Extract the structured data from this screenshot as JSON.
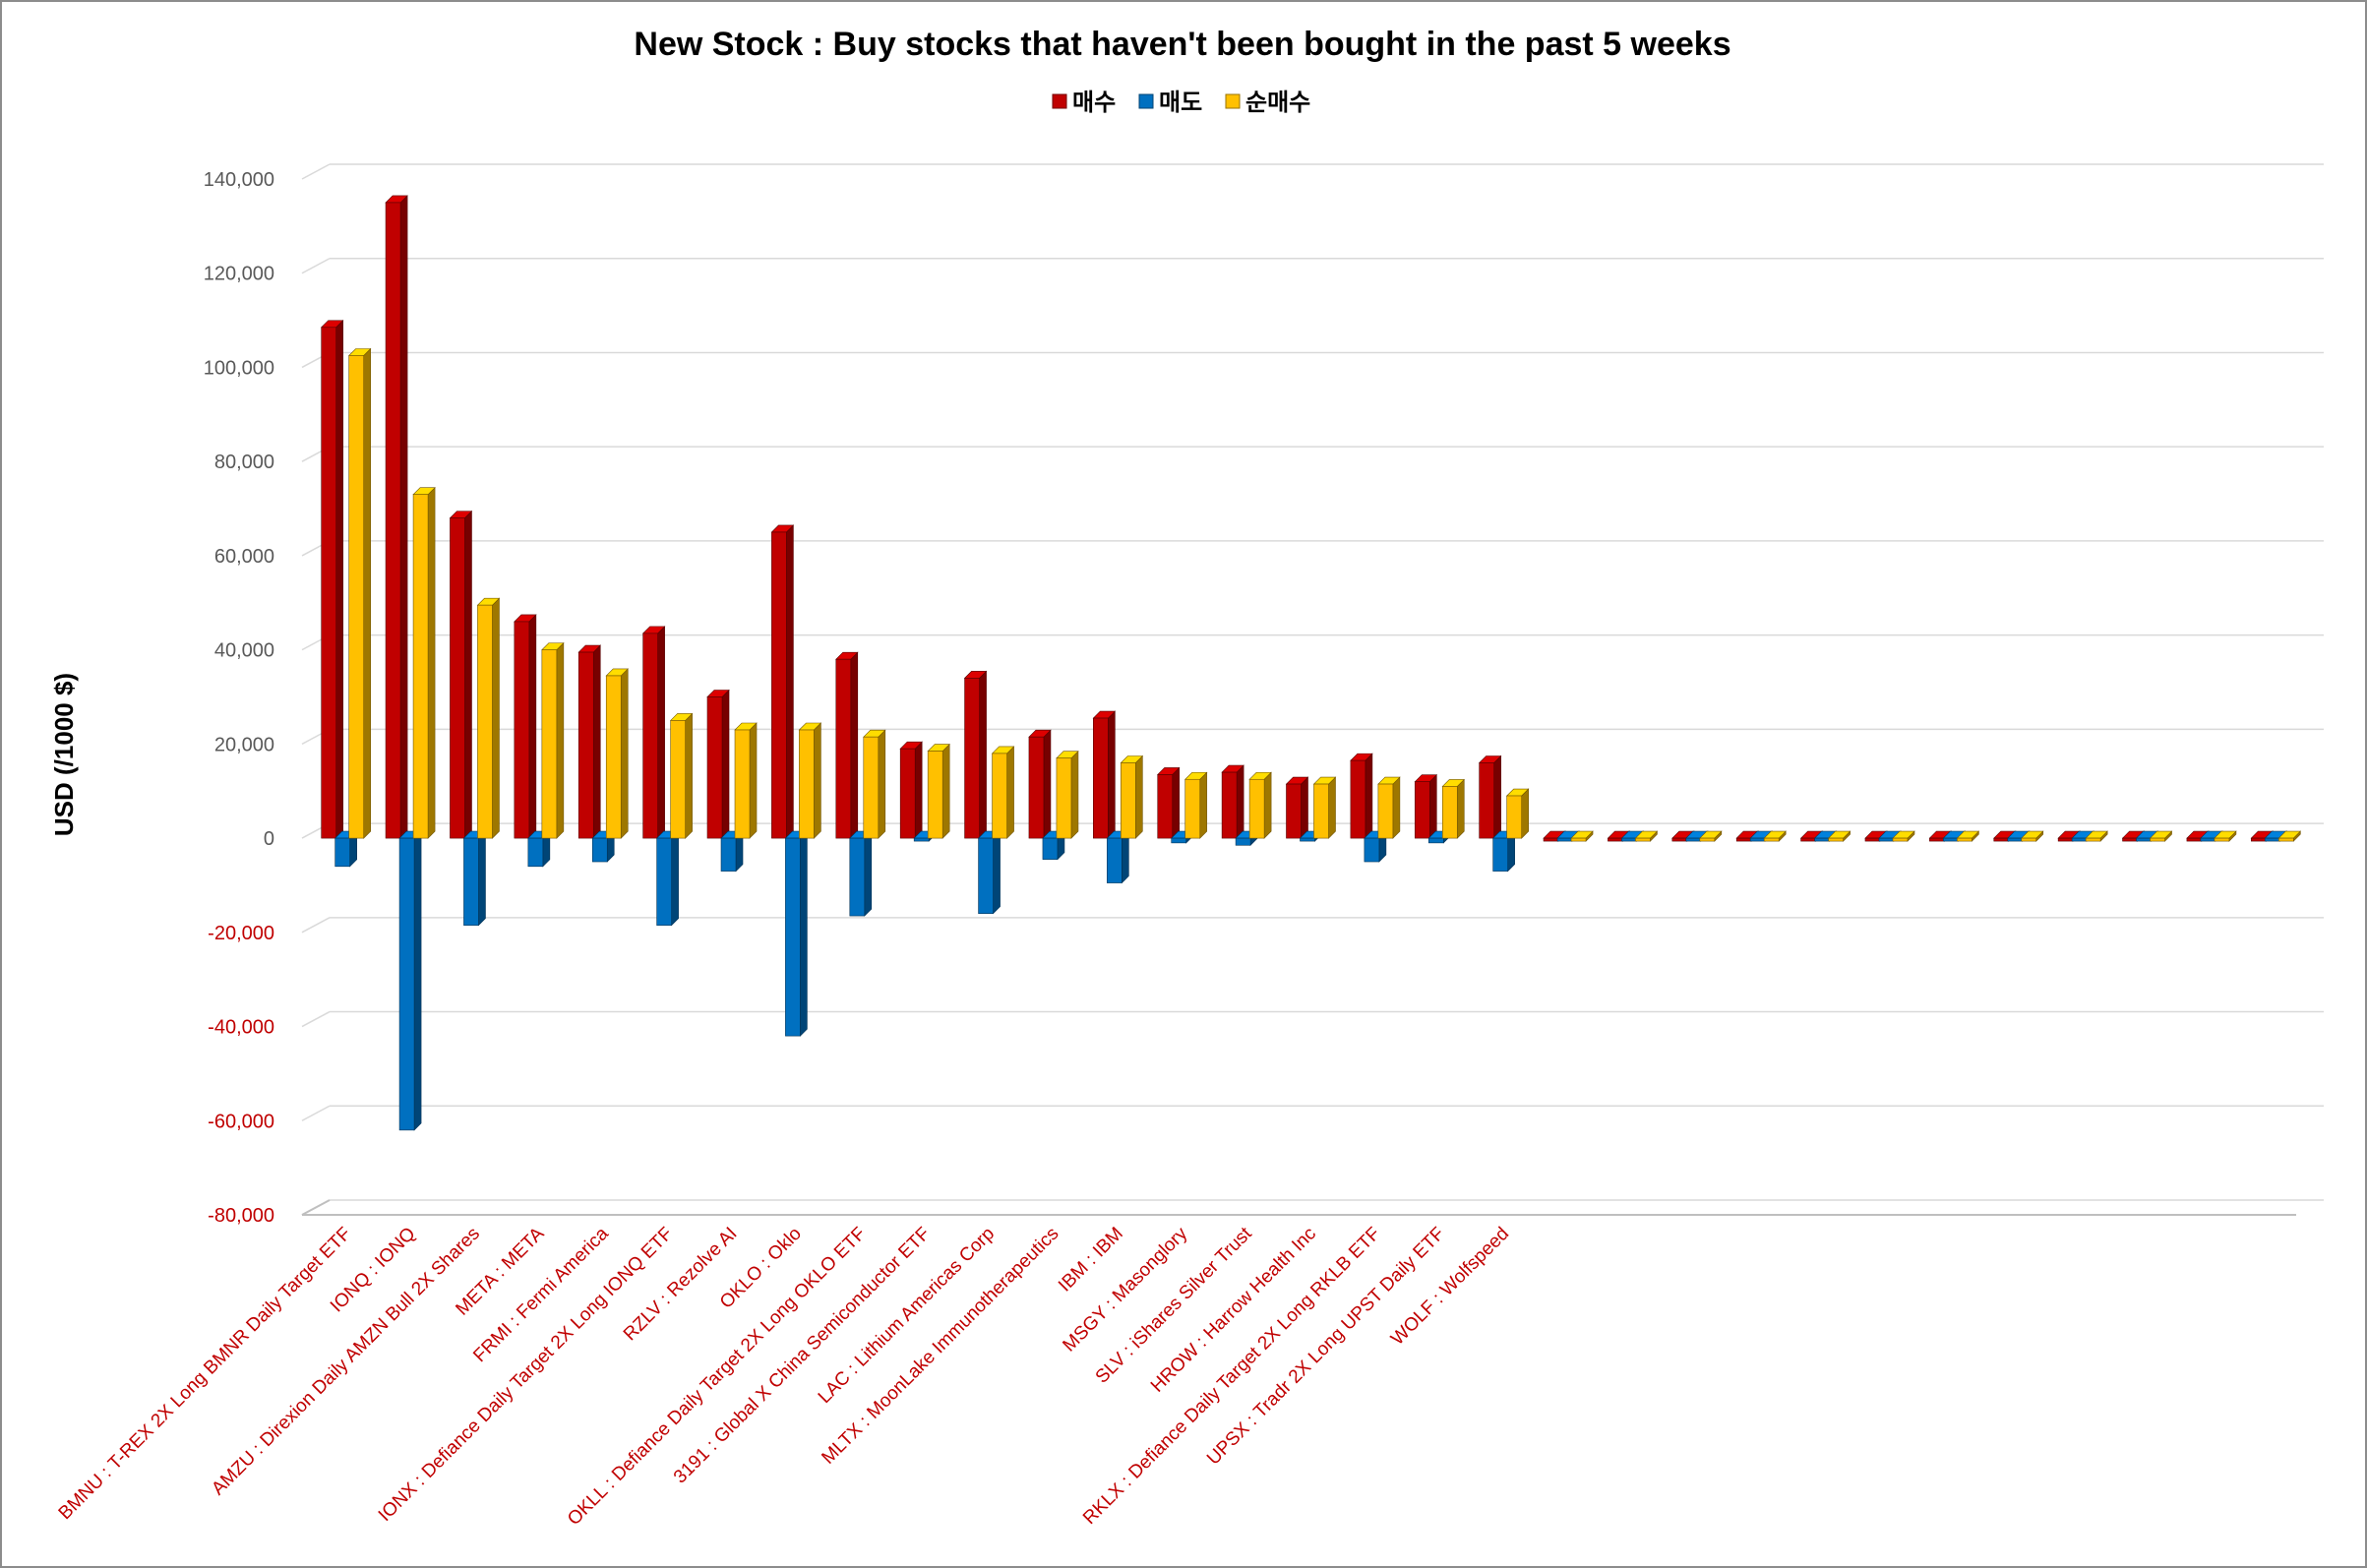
{
  "chart_data": {
    "type": "bar",
    "title": "New Stock : Buy stocks that haven't been bought in the past 5 weeks",
    "ylabel": "USD (/1000 $)",
    "xlabel": "",
    "ylim": [
      -80000,
      140000
    ],
    "yticks": [
      -80000,
      -60000,
      -40000,
      -20000,
      0,
      20000,
      40000,
      60000,
      80000,
      100000,
      120000,
      140000
    ],
    "ytick_labels": [
      "-80,000",
      "-60,000",
      "-40,000",
      "-20,000",
      "0",
      "20,000",
      "40,000",
      "60,000",
      "80,000",
      "100,000",
      "120,000",
      "140,000"
    ],
    "grid": true,
    "legend_position": "top-center",
    "categories": [
      "BMNU : T-REX 2X Long BMNR Daily Target ETF",
      "IONQ : IONQ",
      "AMZU : Direxion Daily AMZN Bull 2X Shares",
      "META : META",
      "FRMI : Fermi America",
      "IONX : Defiance Daily Target 2X Long IONQ ETF",
      "RZLV : Rezolve AI",
      "OKLO : Oklo",
      "OKLL : Defiance Daily Target 2X Long OKLO ETF",
      "3191 : Global X China Semiconductor ETF",
      "LAC : Lithium Americas Corp",
      "MLTX : MoonLake Immunotherapeutics",
      "IBM : IBM",
      "MSGY : Masonglory",
      "SLV : iShares Silver Trust",
      "HROW : Harrow Health Inc",
      "RKLX : Defiance Daily Target 2X Long RKLB ETF",
      "UPSX : Tradr 2X Long UPST Daily ETF",
      "WOLF : Wolfspeed",
      "",
      "",
      "",
      "",
      "",
      "",
      "",
      "",
      "",
      "",
      "",
      ""
    ],
    "series": [
      {
        "name": "매수",
        "color": "#c00000",
        "values": [
          108500,
          135000,
          68000,
          46000,
          39500,
          43500,
          30000,
          65000,
          38000,
          19000,
          34000,
          21500,
          25500,
          13500,
          14000,
          11500,
          16500,
          12000,
          16000,
          0,
          0,
          0,
          0,
          0,
          0,
          0,
          0,
          0,
          0,
          0,
          0
        ]
      },
      {
        "name": "매도",
        "color": "#0070c0",
        "values": [
          -6000,
          -62000,
          -18500,
          -6000,
          -5000,
          -18500,
          -7000,
          -42000,
          -16500,
          -500,
          -16000,
          -4500,
          -9500,
          -1000,
          -1500,
          0,
          -5000,
          -1000,
          -7000,
          0,
          0,
          0,
          0,
          0,
          0,
          0,
          0,
          0,
          0,
          0,
          0
        ]
      },
      {
        "name": "순매수",
        "color": "#ffc000",
        "values": [
          102500,
          73000,
          49500,
          40000,
          34500,
          25000,
          23000,
          23000,
          21500,
          18500,
          18000,
          17000,
          16000,
          12500,
          12500,
          11500,
          11500,
          11000,
          9000,
          0,
          0,
          0,
          0,
          0,
          0,
          0,
          0,
          0,
          0,
          0,
          0
        ]
      }
    ]
  }
}
